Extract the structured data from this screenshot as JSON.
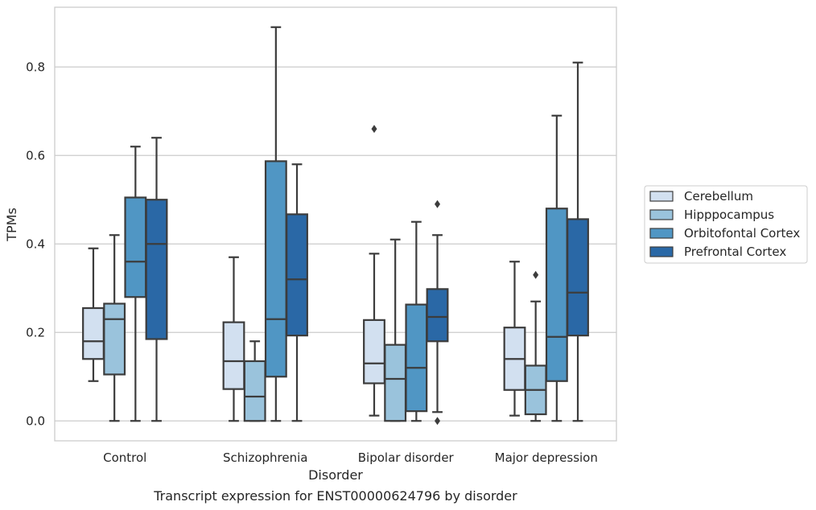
{
  "chart_data": {
    "type": "box",
    "xlabel": "Disorder",
    "ylabel": "TPMs",
    "caption": "Transcript expression for ENST00000624796 by disorder",
    "ylim": [
      -0.045,
      0.935
    ],
    "yticks": [
      "0.0",
      "0.2",
      "0.4",
      "0.6",
      "0.8"
    ],
    "grid": "horizontal",
    "legend_position": "right",
    "categories": [
      "Control",
      "Schizophrenia",
      "Bipolar disorder",
      "Major depression"
    ],
    "series": [
      {
        "name": "Cerebellum",
        "color": "#d2e0f0",
        "boxes": [
          {
            "whisker_low": 0.09,
            "q1": 0.14,
            "median": 0.18,
            "q3": 0.255,
            "whisker_high": 0.39,
            "outliers": []
          },
          {
            "whisker_low": 0.0,
            "q1": 0.072,
            "median": 0.135,
            "q3": 0.223,
            "whisker_high": 0.37,
            "outliers": []
          },
          {
            "whisker_low": 0.012,
            "q1": 0.085,
            "median": 0.13,
            "q3": 0.228,
            "whisker_high": 0.378,
            "outliers": [
              0.66
            ]
          },
          {
            "whisker_low": 0.012,
            "q1": 0.07,
            "median": 0.14,
            "q3": 0.211,
            "whisker_high": 0.36,
            "outliers": []
          }
        ]
      },
      {
        "name": "Hipppocampus",
        "color": "#9ac3dc",
        "boxes": [
          {
            "whisker_low": 0.0,
            "q1": 0.105,
            "median": 0.23,
            "q3": 0.265,
            "whisker_high": 0.42,
            "outliers": []
          },
          {
            "whisker_low": 0.0,
            "q1": 0.0,
            "median": 0.055,
            "q3": 0.135,
            "whisker_high": 0.18,
            "outliers": []
          },
          {
            "whisker_low": 0.0,
            "q1": 0.0,
            "median": 0.095,
            "q3": 0.172,
            "whisker_high": 0.41,
            "outliers": []
          },
          {
            "whisker_low": 0.0,
            "q1": 0.015,
            "median": 0.07,
            "q3": 0.125,
            "whisker_high": 0.27,
            "outliers": [
              0.33
            ]
          }
        ]
      },
      {
        "name": "Orbitofontal Cortex",
        "color": "#5096c4",
        "boxes": [
          {
            "whisker_low": 0.0,
            "q1": 0.28,
            "median": 0.36,
            "q3": 0.505,
            "whisker_high": 0.62,
            "outliers": []
          },
          {
            "whisker_low": 0.0,
            "q1": 0.1,
            "median": 0.23,
            "q3": 0.587,
            "whisker_high": 0.89,
            "outliers": []
          },
          {
            "whisker_low": 0.0,
            "q1": 0.022,
            "median": 0.12,
            "q3": 0.263,
            "whisker_high": 0.45,
            "outliers": []
          },
          {
            "whisker_low": 0.0,
            "q1": 0.09,
            "median": 0.19,
            "q3": 0.48,
            "whisker_high": 0.69,
            "outliers": []
          }
        ]
      },
      {
        "name": "Prefrontal Cortex",
        "color": "#2a68a6",
        "boxes": [
          {
            "whisker_low": 0.0,
            "q1": 0.185,
            "median": 0.4,
            "q3": 0.5,
            "whisker_high": 0.64,
            "outliers": []
          },
          {
            "whisker_low": 0.0,
            "q1": 0.193,
            "median": 0.32,
            "q3": 0.467,
            "whisker_high": 0.58,
            "outliers": []
          },
          {
            "whisker_low": 0.02,
            "q1": 0.18,
            "median": 0.235,
            "q3": 0.298,
            "whisker_high": 0.42,
            "outliers": [
              0.49,
              0.0
            ]
          },
          {
            "whisker_low": 0.0,
            "q1": 0.193,
            "median": 0.29,
            "q3": 0.456,
            "whisker_high": 0.81,
            "outliers": []
          }
        ]
      }
    ]
  }
}
